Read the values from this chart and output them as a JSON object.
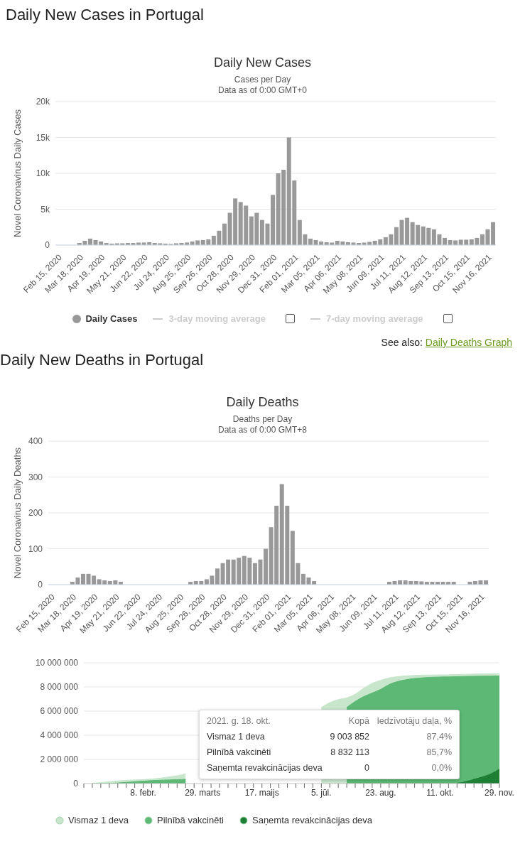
{
  "chart_data": [
    {
      "type": "bar",
      "title": "Daily New Cases",
      "subtitle": "Cases per Day\nData as of 0:00 GMT+0",
      "ylabel": "Novel Coronavirus Daily Cases",
      "annotations": [
        "Daily New Cases in Portugal",
        "3-day moving average",
        "7-day moving average",
        "See also:",
        "Daily Deaths Graph"
      ],
      "categories": [
        "Feb 15, 2020",
        null,
        null,
        null,
        "Mar 18, 2020",
        null,
        null,
        null,
        "Apr 19, 2020",
        null,
        null,
        null,
        "May 21, 2020",
        null,
        null,
        null,
        "Jun 22, 2020",
        null,
        null,
        null,
        "Jul 24, 2020",
        null,
        null,
        null,
        "Aug 25, 2020",
        null,
        null,
        null,
        "Sep 26, 2020",
        null,
        null,
        null,
        "Oct 28, 2020",
        null,
        null,
        null,
        "Nov 29, 2020",
        null,
        null,
        null,
        "Dec 31, 2020",
        null,
        null,
        null,
        "Feb 01, 2021",
        null,
        null,
        null,
        "Mar 05, 2021",
        null,
        null,
        null,
        "Apr 06, 2021",
        null,
        null,
        null,
        "May 08, 2021",
        null,
        null,
        null,
        "Jun 09, 2021",
        null,
        null,
        null,
        "Jul 11, 2021",
        null,
        null,
        null,
        "Aug 12, 2021",
        null,
        null,
        null,
        "Sep 13, 2021",
        null,
        null,
        null,
        "Oct 15, 2021",
        null,
        null,
        null,
        "Nov 16, 2021",
        null
      ],
      "series": [
        {
          "name": "Daily Cases",
          "color": "#999999",
          "values": [
            0,
            0,
            0,
            0,
            300,
            600,
            900,
            700,
            500,
            300,
            200,
            250,
            250,
            300,
            300,
            350,
            350,
            400,
            300,
            250,
            200,
            150,
            250,
            300,
            350,
            500,
            650,
            700,
            800,
            1300,
            2000,
            3000,
            4500,
            6500,
            6000,
            5500,
            4000,
            4500,
            3500,
            3000,
            7000,
            10000,
            10500,
            15000,
            9000,
            3500,
            1500,
            900,
            700,
            500,
            400,
            350,
            600,
            500,
            400,
            350,
            300,
            350,
            450,
            600,
            800,
            1100,
            1500,
            2500,
            3500,
            3800,
            3200,
            2800,
            2600,
            2400,
            2200,
            1500,
            1000,
            700,
            650,
            750,
            750,
            800,
            1000,
            1500,
            2200,
            3200
          ]
        }
      ],
      "ylim": [
        0,
        20000
      ],
      "yticks": [
        {
          "value": 0,
          "label": "0"
        },
        {
          "value": 5000,
          "label": "5k"
        },
        {
          "value": 10000,
          "label": "10k"
        },
        {
          "value": 15000,
          "label": "15k"
        },
        {
          "value": 20000,
          "label": "20k"
        }
      ],
      "grid": "y",
      "legend": "bottom"
    },
    {
      "type": "bar",
      "title": "Daily Deaths",
      "subtitle": "Deaths per Day\nData as of 0:00 GMT+8",
      "ylabel": "Novel Coronavirus Daily Deaths",
      "annotations": [
        "Daily New Deaths in Portugal"
      ],
      "categories": [
        "Feb 15, 2020",
        null,
        null,
        null,
        "Mar 18, 2020",
        null,
        null,
        null,
        "Apr 19, 2020",
        null,
        null,
        null,
        "May 21, 2020",
        null,
        null,
        null,
        "Jun 22, 2020",
        null,
        null,
        null,
        "Jul 24, 2020",
        null,
        null,
        null,
        "Aug 25, 2020",
        null,
        null,
        null,
        "Sep 26, 2020",
        null,
        null,
        null,
        "Oct 28, 2020",
        null,
        null,
        null,
        "Nov 29, 2020",
        null,
        null,
        null,
        "Dec 31, 2020",
        null,
        null,
        null,
        "Feb 01, 2021",
        null,
        null,
        null,
        "Mar 05, 2021",
        null,
        null,
        null,
        "Apr 06, 2021",
        null,
        null,
        null,
        "May 08, 2021",
        null,
        null,
        null,
        "Jun 09, 2021",
        null,
        null,
        null,
        "Jul 11, 2021",
        null,
        null,
        null,
        "Aug 12, 2021",
        null,
        null,
        null,
        "Sep 13, 2021",
        null,
        null,
        null,
        "Oct 15, 2021",
        null,
        null,
        null,
        "Nov 16, 2021",
        null
      ],
      "color": "#999999",
      "values": [
        0,
        0,
        0,
        0,
        8,
        20,
        30,
        30,
        25,
        15,
        12,
        10,
        12,
        8,
        0,
        0,
        0,
        0,
        0,
        0,
        0,
        0,
        0,
        0,
        0,
        0,
        8,
        10,
        10,
        15,
        25,
        45,
        60,
        70,
        70,
        75,
        80,
        75,
        60,
        70,
        100,
        160,
        220,
        280,
        220,
        150,
        60,
        30,
        20,
        10,
        0,
        0,
        0,
        0,
        0,
        0,
        0,
        0,
        0,
        0,
        0,
        0,
        0,
        8,
        10,
        12,
        12,
        10,
        10,
        9,
        8,
        8,
        8,
        8,
        8,
        8,
        0,
        0,
        8,
        10,
        12,
        12
      ],
      "ylim": [
        0,
        400
      ],
      "yticks": [
        0,
        100,
        200,
        300,
        400
      ],
      "grid": "y"
    },
    {
      "type": "area",
      "annotations": [
        "2021. g. 18. okt.",
        "Kopā",
        "Iedzīvotāju daļa, %",
        "Vismaz 1 deva",
        "9 003 852",
        "87,4%",
        "Pilnībā vakcinēti",
        "8 832 113",
        "85,7%",
        "Saņemta revakcinācijas deva",
        "0",
        "0,0%"
      ],
      "categories": [
        null,
        null,
        null,
        null,
        null,
        null,
        null,
        "8. febr.",
        null,
        null,
        null,
        null,
        null,
        null,
        "29. marts",
        null,
        null,
        null,
        null,
        null,
        null,
        "17. maijs",
        null,
        null,
        null,
        null,
        null,
        null,
        "5. jūl.",
        null,
        null,
        null,
        null,
        null,
        null,
        "23. aug.",
        null,
        null,
        null,
        null,
        null,
        null,
        "11. okt.",
        null,
        null,
        null,
        null,
        null,
        null,
        "29. nov."
      ],
      "series": [
        {
          "name": "Vismaz 1 deva",
          "color": "#c8e6cc",
          "values": [
            null,
            30000,
            80000,
            150000,
            220000,
            280000,
            300000,
            330000,
            380000,
            450000,
            550000,
            650000,
            800000,
            null,
            null,
            null,
            null,
            null,
            null,
            null,
            null,
            null,
            null,
            null,
            null,
            null,
            null,
            null,
            6300000,
            6700000,
            6950000,
            7100000,
            7400000,
            7900000,
            8300000,
            8550000,
            8750000,
            8850000,
            8920000,
            8960000,
            8980000,
            8990000,
            9000000,
            9003852,
            9030000,
            9050000,
            9070000,
            9090000,
            9100000,
            9110000
          ]
        },
        {
          "name": "Pilnībā vakcinēti",
          "color": "#5cb874",
          "values": [
            null,
            0,
            0,
            10000,
            50000,
            100000,
            150000,
            200000,
            250000,
            280000,
            300000,
            320000,
            350000,
            null,
            null,
            null,
            null,
            null,
            null,
            null,
            null,
            null,
            null,
            null,
            null,
            null,
            null,
            null,
            null,
            null,
            null,
            6300000,
            6800000,
            7200000,
            7500000,
            7800000,
            8200000,
            8450000,
            8600000,
            8700000,
            8760000,
            8800000,
            8820000,
            8832113,
            8850000,
            8870000,
            8880000,
            8890000,
            8900000,
            8910000
          ]
        },
        {
          "name": "Saņemta revakcinācijas deva",
          "color": "#1e7e34",
          "values": [
            null,
            null,
            null,
            null,
            null,
            null,
            null,
            null,
            null,
            null,
            null,
            null,
            null,
            null,
            null,
            null,
            null,
            null,
            null,
            null,
            null,
            null,
            null,
            null,
            null,
            null,
            null,
            null,
            null,
            null,
            null,
            null,
            null,
            null,
            null,
            null,
            null,
            null,
            null,
            null,
            null,
            null,
            null,
            null,
            20000,
            150000,
            350000,
            550000,
            800000,
            1200000
          ]
        }
      ],
      "ylim": [
        0,
        10000000
      ],
      "yticks": [
        {
          "value": 0,
          "label": "0"
        },
        {
          "value": 2000000,
          "label": "2 000 000"
        },
        {
          "value": 4000000,
          "label": "4 000 000"
        },
        {
          "value": 6000000,
          "label": "6 000 000"
        },
        {
          "value": 8000000,
          "label": "8 000 000"
        },
        {
          "value": 10000000,
          "label": "10 000 000"
        }
      ],
      "grid": "y",
      "legend": "bottom"
    }
  ]
}
